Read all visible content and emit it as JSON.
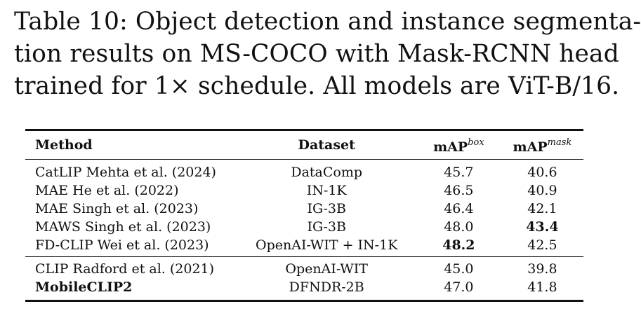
{
  "caption": {
    "line1": "Table 10: Object detection and instance segmenta-",
    "line2": "tion results on MS-COCO with Mask-RCNN head",
    "line3": "trained for 1× schedule. All models are ViT-B/16."
  },
  "table": {
    "headers": {
      "method": "Method",
      "dataset": "Dataset",
      "map_box": "mAP",
      "map_box_sup": "box",
      "map_mask": "mAP",
      "map_mask_sup": "mask"
    },
    "group1": [
      {
        "method": "CatLIP Mehta et al. (2024)",
        "dataset": "DataComp",
        "box": "45.7",
        "mask": "40.6"
      },
      {
        "method": "MAE He et al. (2022)",
        "dataset": "IN-1K",
        "box": "46.5",
        "mask": "40.9"
      },
      {
        "method": "MAE Singh et al. (2023)",
        "dataset": "IG-3B",
        "box": "46.4",
        "mask": "42.1"
      },
      {
        "method": "MAWS Singh et al. (2023)",
        "dataset": "IG-3B",
        "box": "48.0",
        "mask": "43.4"
      },
      {
        "method": "FD-CLIP Wei et al. (2023)",
        "dataset": "OpenAI-WIT + IN-1K",
        "box": "48.2",
        "mask": "42.5"
      }
    ],
    "group2": [
      {
        "method": "CLIP Radford et al. (2021)",
        "dataset": "OpenAI-WIT",
        "box": "45.0",
        "mask": "39.8"
      },
      {
        "method": "MobileCLIP2",
        "dataset": "DFNDR-2B",
        "box": "47.0",
        "mask": "41.8"
      }
    ]
  }
}
